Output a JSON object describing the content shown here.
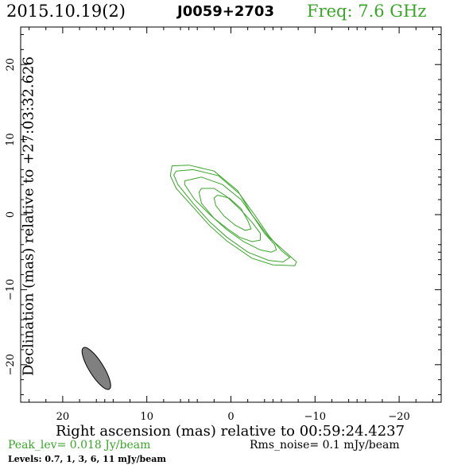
{
  "header": {
    "date": "2015.10.19(2)",
    "source": "J0059+2703",
    "freq": "Freq: 7.6 GHz"
  },
  "chart_data": {
    "type": "contour",
    "xlabel": "Right ascension (mas) relative to 00:59:24.4237",
    "ylabel": "Declination (mas) relative to +27:03:32.626",
    "xlim": [
      25,
      -25
    ],
    "ylim": [
      -25,
      25
    ],
    "xticks": [
      20,
      10,
      0,
      -10,
      -20
    ],
    "yticks": [
      20,
      10,
      0,
      -10,
      -20
    ],
    "xtick_labels": [
      "20",
      "10",
      "0",
      "−10",
      "−20"
    ],
    "ytick_labels": [
      "20",
      "10",
      "0",
      "−10",
      "−20"
    ],
    "contour_color": "#3aa52a",
    "contour_levels_mJy": [
      0.7,
      1,
      3,
      6,
      11
    ],
    "contours": [
      [
        [
          7.0,
          6.5
        ],
        [
          5.0,
          6.6
        ],
        [
          2.0,
          5.8
        ],
        [
          -0.8,
          3.2
        ],
        [
          -2.5,
          0.0
        ],
        [
          -4.5,
          -3.0
        ],
        [
          -6.5,
          -5.0
        ],
        [
          -7.8,
          -6.3
        ],
        [
          -7.6,
          -6.8
        ],
        [
          -5.0,
          -6.7
        ],
        [
          -2.5,
          -5.8
        ],
        [
          0.5,
          -3.5
        ],
        [
          2.5,
          -1.5
        ],
        [
          4.5,
          1.0
        ],
        [
          6.5,
          3.5
        ],
        [
          7.2,
          5.2
        ],
        [
          7.0,
          6.5
        ]
      ],
      [
        [
          6.5,
          5.8
        ],
        [
          4.5,
          6.0
        ],
        [
          1.5,
          5.2
        ],
        [
          -1.0,
          2.8
        ],
        [
          -2.8,
          0.0
        ],
        [
          -4.5,
          -2.8
        ],
        [
          -6.0,
          -4.8
        ],
        [
          -7.0,
          -5.7
        ],
        [
          -6.2,
          -6.3
        ],
        [
          -4.5,
          -6.1
        ],
        [
          -2.0,
          -5.0
        ],
        [
          0.5,
          -3.0
        ],
        [
          2.5,
          -1.0
        ],
        [
          4.5,
          1.5
        ],
        [
          6.3,
          4.0
        ],
        [
          6.8,
          5.3
        ],
        [
          6.5,
          5.8
        ]
      ],
      [
        [
          5.5,
          4.5
        ],
        [
          3.5,
          5.0
        ],
        [
          1.0,
          4.0
        ],
        [
          -1.2,
          2.0
        ],
        [
          -2.8,
          -0.5
        ],
        [
          -4.0,
          -2.5
        ],
        [
          -5.2,
          -4.0
        ],
        [
          -5.4,
          -4.7
        ],
        [
          -4.8,
          -5.0
        ],
        [
          -3.5,
          -4.7
        ],
        [
          -1.5,
          -3.6
        ],
        [
          0.5,
          -2.0
        ],
        [
          2.5,
          0.0
        ],
        [
          4.3,
          2.0
        ],
        [
          5.5,
          4.0
        ],
        [
          5.5,
          4.5
        ]
      ],
      [
        [
          3.5,
          3.5
        ],
        [
          2.0,
          3.5
        ],
        [
          0.5,
          2.4
        ],
        [
          -1.2,
          0.6
        ],
        [
          -2.5,
          -1.0
        ],
        [
          -3.5,
          -2.5
        ],
        [
          -3.5,
          -3.4
        ],
        [
          -2.5,
          -3.6
        ],
        [
          -1.0,
          -3.0
        ],
        [
          0.5,
          -1.8
        ],
        [
          2.0,
          -0.5
        ],
        [
          3.5,
          1.5
        ],
        [
          3.8,
          3.0
        ],
        [
          3.5,
          3.5
        ]
      ],
      [
        [
          1.6,
          2.6
        ],
        [
          0.2,
          2.2
        ],
        [
          -1.2,
          0.8
        ],
        [
          -2.0,
          -0.8
        ],
        [
          -2.4,
          -1.9
        ],
        [
          -1.7,
          -2.1
        ],
        [
          -0.5,
          -1.4
        ],
        [
          0.8,
          -0.2
        ],
        [
          1.8,
          1.2
        ],
        [
          2.0,
          2.2
        ],
        [
          1.6,
          2.6
        ]
      ]
    ],
    "beam": {
      "center": [
        16.0,
        -20.5
      ],
      "major_mas": 6.5,
      "minor_mas": 1.7,
      "pa_deg": 32,
      "fill": "#808080"
    },
    "peak_text": "Peak_lev=  0.018 Jy/beam",
    "rms_text": "Rms_noise=   0.1 mJy/beam",
    "levels_text": "Levels: 0.7,    1,    3,    6,   11 mJy/beam"
  }
}
